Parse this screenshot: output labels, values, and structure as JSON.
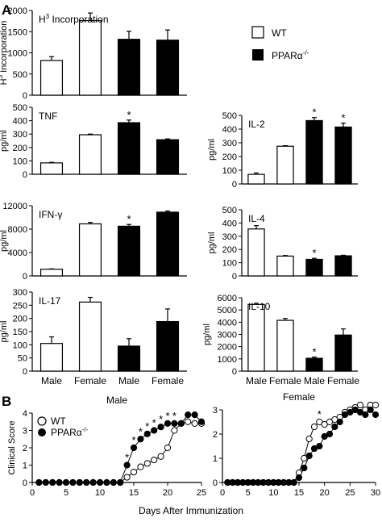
{
  "figure": {
    "panel_a_letter": "A",
    "panel_b_letter": "B",
    "legend_a": [
      "WT",
      "PPARα-/-"
    ],
    "legend_b": [
      "WT",
      "PPARα-/-"
    ],
    "categories": [
      "Male",
      "Female",
      "Male",
      "Female"
    ],
    "x_label_b": "Days After Immunization"
  },
  "chart_data": [
    {
      "id": "h3",
      "type": "bar",
      "title": "H3 Incorporation",
      "ylabel": "H3 Incorporation",
      "y_label_style": "superscript-3",
      "categories": [
        "Male",
        "Female",
        "Male",
        "Female"
      ],
      "series": [
        {
          "name": "WT",
          "values": [
            820,
            1760,
            null,
            null
          ],
          "errors": [
            90,
            180,
            null,
            null
          ],
          "color": "#ffffff"
        },
        {
          "name": "PPARα-/-",
          "values": [
            null,
            null,
            1320,
            1300
          ],
          "errors": [
            null,
            null,
            190,
            240
          ],
          "color": "#000000"
        }
      ],
      "ylim": [
        0,
        2000
      ],
      "yticks": [
        "0",
        "500",
        "1000",
        "1500",
        "2000"
      ],
      "significant": [
        false,
        false,
        false,
        false
      ],
      "show_categories": false
    },
    {
      "id": "tnf",
      "type": "bar",
      "title": "TNF",
      "ylabel": "pg/ml",
      "categories": [
        "Male",
        "Female",
        "Male",
        "Female"
      ],
      "series": [
        {
          "name": "WT",
          "values": [
            85,
            295,
            null,
            null
          ],
          "errors": [
            4,
            5,
            null,
            null
          ],
          "color": "#ffffff"
        },
        {
          "name": "PPARα-/-",
          "values": [
            null,
            null,
            385,
            258
          ],
          "errors": [
            null,
            null,
            20,
            6
          ],
          "color": "#000000"
        }
      ],
      "ylim": [
        0,
        500
      ],
      "yticks": [
        "0",
        "100",
        "200",
        "300",
        "400",
        "500"
      ],
      "significant": [
        false,
        false,
        true,
        false
      ],
      "show_categories": false
    },
    {
      "id": "ifn",
      "type": "bar",
      "title": "IFN-γ",
      "ylabel": "pg/ml",
      "categories": [
        "Male",
        "Female",
        "Male",
        "Female"
      ],
      "series": [
        {
          "name": "WT",
          "values": [
            1150,
            8900,
            null,
            null
          ],
          "errors": [
            60,
            250,
            null,
            null
          ],
          "color": "#ffffff"
        },
        {
          "name": "PPARα-/-",
          "values": [
            null,
            null,
            8500,
            10900
          ],
          "errors": [
            null,
            null,
            300,
            200
          ],
          "color": "#000000"
        }
      ],
      "ylim": [
        0,
        12000
      ],
      "yticks": [
        "0",
        "4000",
        "8000",
        "12000"
      ],
      "significant": [
        false,
        false,
        true,
        false
      ],
      "show_categories": false
    },
    {
      "id": "il17",
      "type": "bar",
      "title": "IL-17",
      "ylabel": "pg/ml",
      "categories": [
        "Male",
        "Female",
        "Male",
        "Female"
      ],
      "series": [
        {
          "name": "WT",
          "values": [
            105,
            262,
            null,
            null
          ],
          "errors": [
            25,
            18,
            null,
            null
          ],
          "color": "#ffffff"
        },
        {
          "name": "PPARα-/-",
          "values": [
            null,
            null,
            95,
            188
          ],
          "errors": [
            null,
            null,
            28,
            48
          ],
          "color": "#000000"
        }
      ],
      "ylim": [
        0,
        300
      ],
      "yticks": [
        "0",
        "50",
        "100",
        "150",
        "200",
        "250",
        "300"
      ],
      "significant": [
        false,
        false,
        false,
        false
      ],
      "show_categories": true
    },
    {
      "id": "il2",
      "type": "bar",
      "title": "IL-2",
      "ylabel": "pg/ml",
      "categories": [
        "Male",
        "Female",
        "Male",
        "Female"
      ],
      "series": [
        {
          "name": "WT",
          "values": [
            70,
            275,
            null,
            null
          ],
          "errors": [
            10,
            4,
            null,
            null
          ],
          "color": "#ffffff"
        },
        {
          "name": "PPARα-/-",
          "values": [
            null,
            null,
            462,
            415
          ],
          "errors": [
            null,
            null,
            22,
            28
          ],
          "color": "#000000"
        }
      ],
      "ylim": [
        0,
        500
      ],
      "yticks": [
        "0",
        "100",
        "200",
        "300",
        "400",
        "500"
      ],
      "significant": [
        false,
        false,
        true,
        true
      ],
      "show_categories": false
    },
    {
      "id": "il4",
      "type": "bar",
      "title": "IL-4",
      "ylabel": "pg/ml",
      "categories": [
        "Male",
        "Female",
        "Male",
        "Female"
      ],
      "series": [
        {
          "name": "WT",
          "values": [
            355,
            150,
            null,
            null
          ],
          "errors": [
            25,
            4,
            null,
            null
          ],
          "color": "#ffffff"
        },
        {
          "name": "PPARα-/-",
          "values": [
            null,
            null,
            125,
            152
          ],
          "errors": [
            null,
            null,
            8,
            4
          ],
          "color": "#000000"
        }
      ],
      "ylim": [
        0,
        500
      ],
      "yticks": [
        "0",
        "100",
        "200",
        "300",
        "400",
        "500"
      ],
      "significant": [
        false,
        false,
        true,
        false
      ],
      "show_categories": false
    },
    {
      "id": "il10",
      "type": "bar",
      "title": "IL-10",
      "ylabel": "pg/ml",
      "categories": [
        "Male",
        "Female",
        "Male",
        "Female"
      ],
      "series": [
        {
          "name": "WT",
          "values": [
            5450,
            4150,
            null,
            null
          ],
          "errors": [
            100,
            150,
            null,
            null
          ],
          "color": "#ffffff"
        },
        {
          "name": "PPARα-/-",
          "values": [
            null,
            null,
            1050,
            2950
          ],
          "errors": [
            null,
            null,
            100,
            500
          ],
          "color": "#000000"
        }
      ],
      "ylim": [
        0,
        6000
      ],
      "yticks": [
        "0",
        "1000",
        "2000",
        "3000",
        "4000",
        "5000",
        "6000"
      ],
      "significant": [
        false,
        false,
        true,
        false
      ],
      "show_categories": true
    },
    {
      "id": "male_eae",
      "type": "line",
      "title": "Male",
      "xlabel": "Days After Immunization",
      "ylabel": "Clinical Score",
      "x": [
        1,
        2,
        3,
        4,
        5,
        6,
        7,
        8,
        9,
        10,
        11,
        12,
        13,
        14,
        15,
        16,
        17,
        18,
        19,
        20,
        21,
        22,
        23,
        24,
        25
      ],
      "series": [
        {
          "name": "WT",
          "marker": "open-circle",
          "values": [
            0,
            0,
            0,
            0,
            0,
            0,
            0,
            0,
            0,
            0,
            0,
            0,
            0,
            0.3,
            0.6,
            0.9,
            1.1,
            1.3,
            1.5,
            2.0,
            3.0,
            3.4,
            3.5,
            3.4,
            3.4
          ]
        },
        {
          "name": "PPARα-/-",
          "marker": "filled-circle",
          "values": [
            0,
            0,
            0,
            0,
            0,
            0,
            0,
            0,
            0,
            0,
            0,
            0,
            0,
            1.0,
            2.0,
            2.5,
            2.8,
            3.0,
            3.2,
            3.4,
            3.4,
            3.4,
            3.9,
            3.9,
            3.5
          ]
        }
      ],
      "significant_x": [
        14,
        15,
        16,
        17,
        18,
        19,
        20,
        21
      ],
      "xlim": [
        0,
        25
      ],
      "ylim": [
        0,
        4
      ],
      "xticks": [
        "0",
        "5",
        "10",
        "15",
        "20",
        "25"
      ],
      "yticks": [
        "0",
        "1",
        "2",
        "3",
        "4"
      ]
    },
    {
      "id": "female_eae",
      "type": "line",
      "title": "Female",
      "xlabel": "Days After Immunization",
      "ylabel": "",
      "x": [
        1,
        2,
        3,
        4,
        5,
        6,
        7,
        8,
        9,
        10,
        11,
        12,
        13,
        14,
        15,
        16,
        17,
        18,
        19,
        20,
        21,
        22,
        23,
        24,
        25,
        26,
        27,
        28,
        29,
        30
      ],
      "series": [
        {
          "name": "WT",
          "marker": "open-circle",
          "values": [
            0,
            0,
            0,
            0,
            0,
            0,
            0,
            0,
            0,
            0,
            0,
            0,
            0,
            0,
            0.4,
            1.0,
            1.8,
            2.3,
            2.5,
            2.4,
            2.5,
            2.6,
            2.7,
            2.9,
            3.0,
            3.1,
            3.2,
            3.0,
            3.2,
            3.2
          ]
        },
        {
          "name": "PPARα-/-",
          "marker": "filled-circle",
          "values": [
            0,
            0,
            0,
            0,
            0,
            0,
            0,
            0,
            0,
            0,
            0,
            0,
            0,
            0,
            0.2,
            0.6,
            1.1,
            1.4,
            1.5,
            1.9,
            2.0,
            2.3,
            2.5,
            2.8,
            2.9,
            3.0,
            2.9,
            2.8,
            3.0,
            2.8
          ]
        }
      ],
      "significant_x": [
        19
      ],
      "xlim": [
        0,
        30
      ],
      "ylim": [
        0,
        3
      ],
      "xticks": [
        "0",
        "5",
        "10",
        "15",
        "20",
        "25",
        "30"
      ],
      "yticks": [
        "0",
        "1",
        "2",
        "3"
      ]
    }
  ]
}
